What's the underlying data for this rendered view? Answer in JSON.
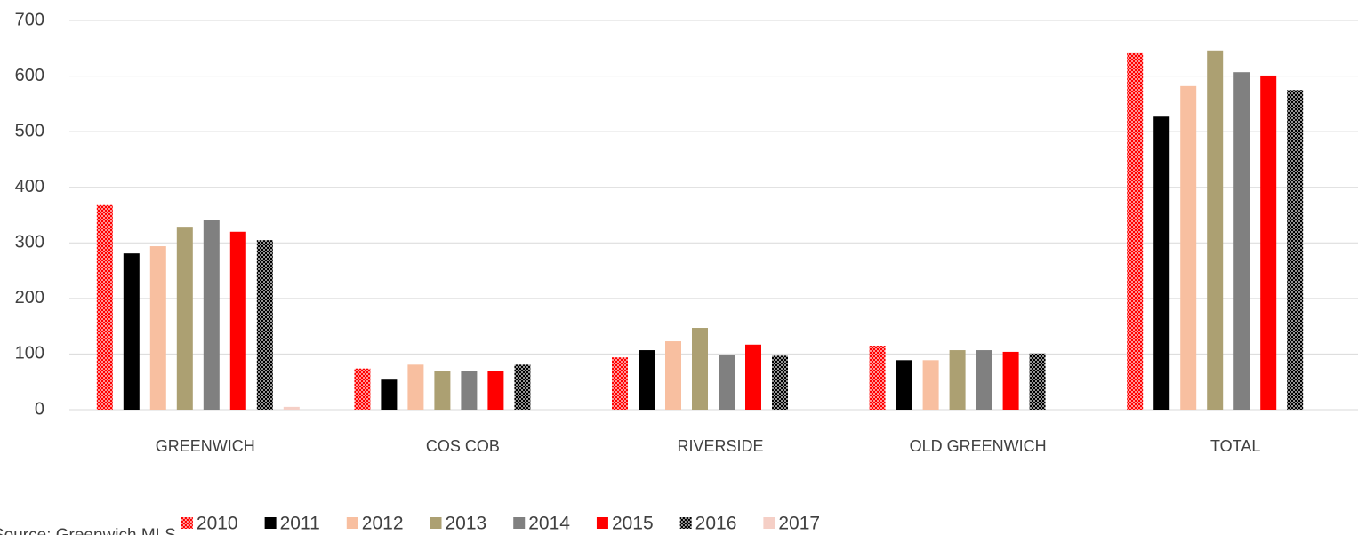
{
  "chart_data": {
    "type": "bar",
    "categories": [
      "GREENWICH",
      "COS COB",
      "RIVERSIDE",
      "OLD GREENWICH",
      "TOTAL"
    ],
    "series": [
      {
        "name": "2010",
        "color": "#ff0000",
        "pattern": "dotted",
        "values": [
          368,
          74,
          94,
          115,
          641
        ]
      },
      {
        "name": "2011",
        "color": "#000000",
        "values": [
          281,
          54,
          107,
          89,
          527
        ]
      },
      {
        "name": "2012",
        "color": "#f8bfa0",
        "values": [
          294,
          81,
          123,
          89,
          582
        ]
      },
      {
        "name": "2013",
        "color": "#aca072",
        "values": [
          329,
          69,
          147,
          107,
          646
        ]
      },
      {
        "name": "2014",
        "color": "#808080",
        "values": [
          342,
          69,
          99,
          107,
          607
        ]
      },
      {
        "name": "2015",
        "color": "#ff0000",
        "values": [
          320,
          69,
          117,
          104,
          601
        ]
      },
      {
        "name": "2016",
        "color": "#000000",
        "pattern": "dotted",
        "values": [
          305,
          81,
          97,
          101,
          575
        ]
      },
      {
        "name": "2017",
        "color": "#f5cfc6",
        "values": [
          5,
          null,
          null,
          null,
          null
        ]
      }
    ],
    "ylim": [
      0,
      700
    ],
    "yticks": [
      0,
      100,
      200,
      300,
      400,
      500,
      600,
      700
    ],
    "grid": true,
    "legend": "bottom",
    "source": "Source: Greenwich MLS"
  }
}
